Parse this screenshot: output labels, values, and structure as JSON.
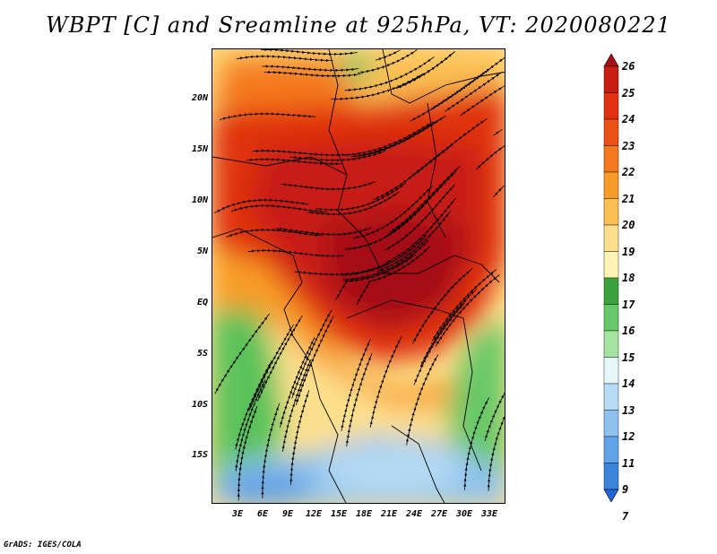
{
  "title": "WBPT [C] and Sreamline at 925hPa, VT: 2020080221",
  "credit": "GrADS: IGES/COLA",
  "map": {
    "lat_labels": [
      "20N",
      "15N",
      "10N",
      "5N",
      "EQ",
      "5S",
      "10S",
      "15S"
    ],
    "lon_labels": [
      "3E",
      "6E",
      "9E",
      "12E",
      "15E",
      "18E",
      "21E",
      "24E",
      "27E",
      "30E",
      "33E"
    ],
    "lat_range": [
      -20,
      25
    ],
    "lon_range": [
      0,
      35
    ]
  },
  "colorbar": {
    "labels": [
      "26",
      "25",
      "24",
      "23",
      "22",
      "21",
      "20",
      "19",
      "18",
      "17",
      "16",
      "15",
      "14",
      "13",
      "12",
      "11",
      "9",
      "7"
    ],
    "colors": [
      "#a50f15",
      "#c81e12",
      "#e03210",
      "#ec5014",
      "#f5781c",
      "#f89c28",
      "#fbbf52",
      "#fde08d",
      "#fff4b6",
      "#3ba33b",
      "#66c866",
      "#a5e3a0",
      "#e6f7fa",
      "#b6dbf5",
      "#8ec1ee",
      "#62a2e6",
      "#3a84dc",
      "#2166d4"
    ]
  },
  "colors": {
    "red_core": "#d23212",
    "orange": "#f5781c",
    "yellow": "#fde08d",
    "green": "#5ac25a",
    "blue": "#8ec1ee",
    "streamline": "#000000"
  }
}
